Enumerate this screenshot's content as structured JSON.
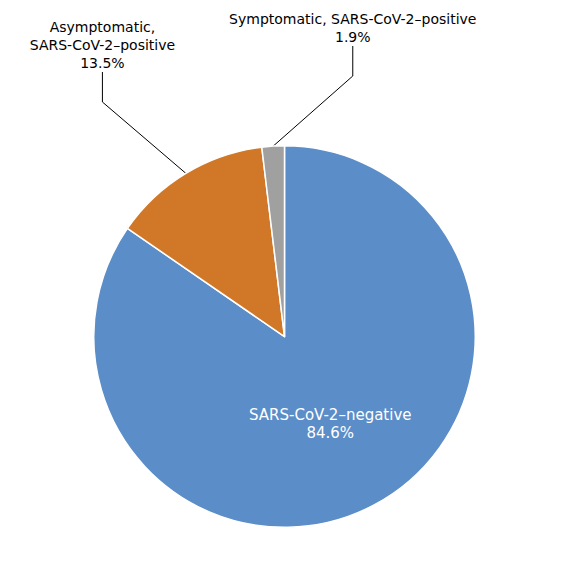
{
  "chart_data": {
    "type": "pie",
    "categories": [
      "SARS-CoV-2–negative",
      "Asymptomatic,\nSARS-CoV-2–positive",
      "Symptomatic, SARS-CoV-2–positive"
    ],
    "values": [
      84.6,
      13.5,
      1.9
    ],
    "value_labels": [
      "84.6%",
      "13.5%",
      "1.9%"
    ],
    "colors": [
      "#5b8dc8",
      "#d07828",
      "#a0a0a0"
    ],
    "data_labels": true
  }
}
